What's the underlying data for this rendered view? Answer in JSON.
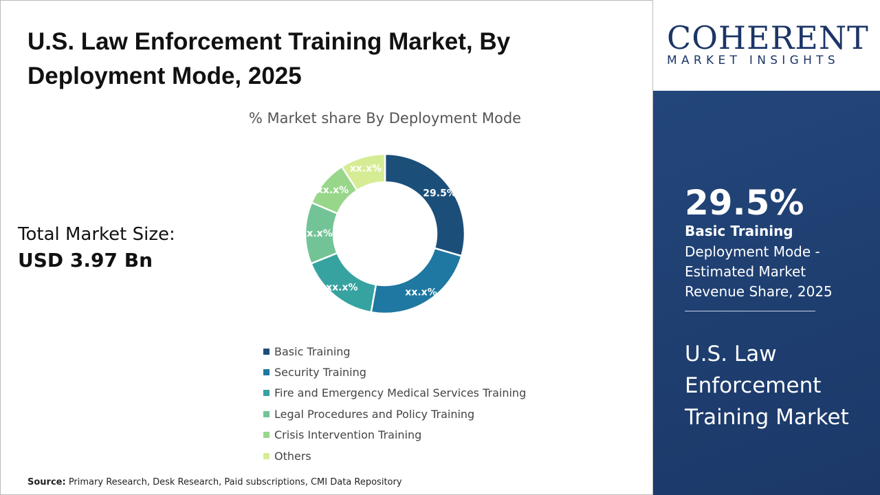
{
  "title": "U.S. Law Enforcement Training Market, By Deployment Mode, 2025",
  "total_label": "Total Market Size:",
  "total_value": "USD 3.97 Bn",
  "source_label": "Source:",
  "source_text": " Primary Research, Desk Research, Paid subscriptions, CMI Data Repository",
  "logo": {
    "top": "COHERENT",
    "bottom": "MARKET INSIGHTS"
  },
  "panel": {
    "value": "29.5%",
    "label": "Basic Training",
    "desc": "Deployment Mode - Estimated Market Revenue Share, 2025",
    "market": "U.S. Law Enforcement Training Market"
  },
  "chart_data": {
    "type": "pie",
    "title": "% Market share By Deployment Mode",
    "categories": [
      "Basic Training",
      "Security Training",
      "Fire and Emergency Medical Services Training",
      "Legal Procedures and Policy Training",
      "Crisis Intervention Training",
      "Others"
    ],
    "values": [
      29.5,
      23.3,
      16.1,
      12.5,
      9.5,
      9.1
    ],
    "labels": [
      "29.5%",
      "xx.x%",
      "xx.x%",
      "xx.x%",
      "xx.x%",
      "xx.x%"
    ],
    "colors": [
      "#1b4f7a",
      "#1f78a1",
      "#36a3a0",
      "#72c496",
      "#98d78a",
      "#d6ec94"
    ],
    "legend": "bottom"
  }
}
